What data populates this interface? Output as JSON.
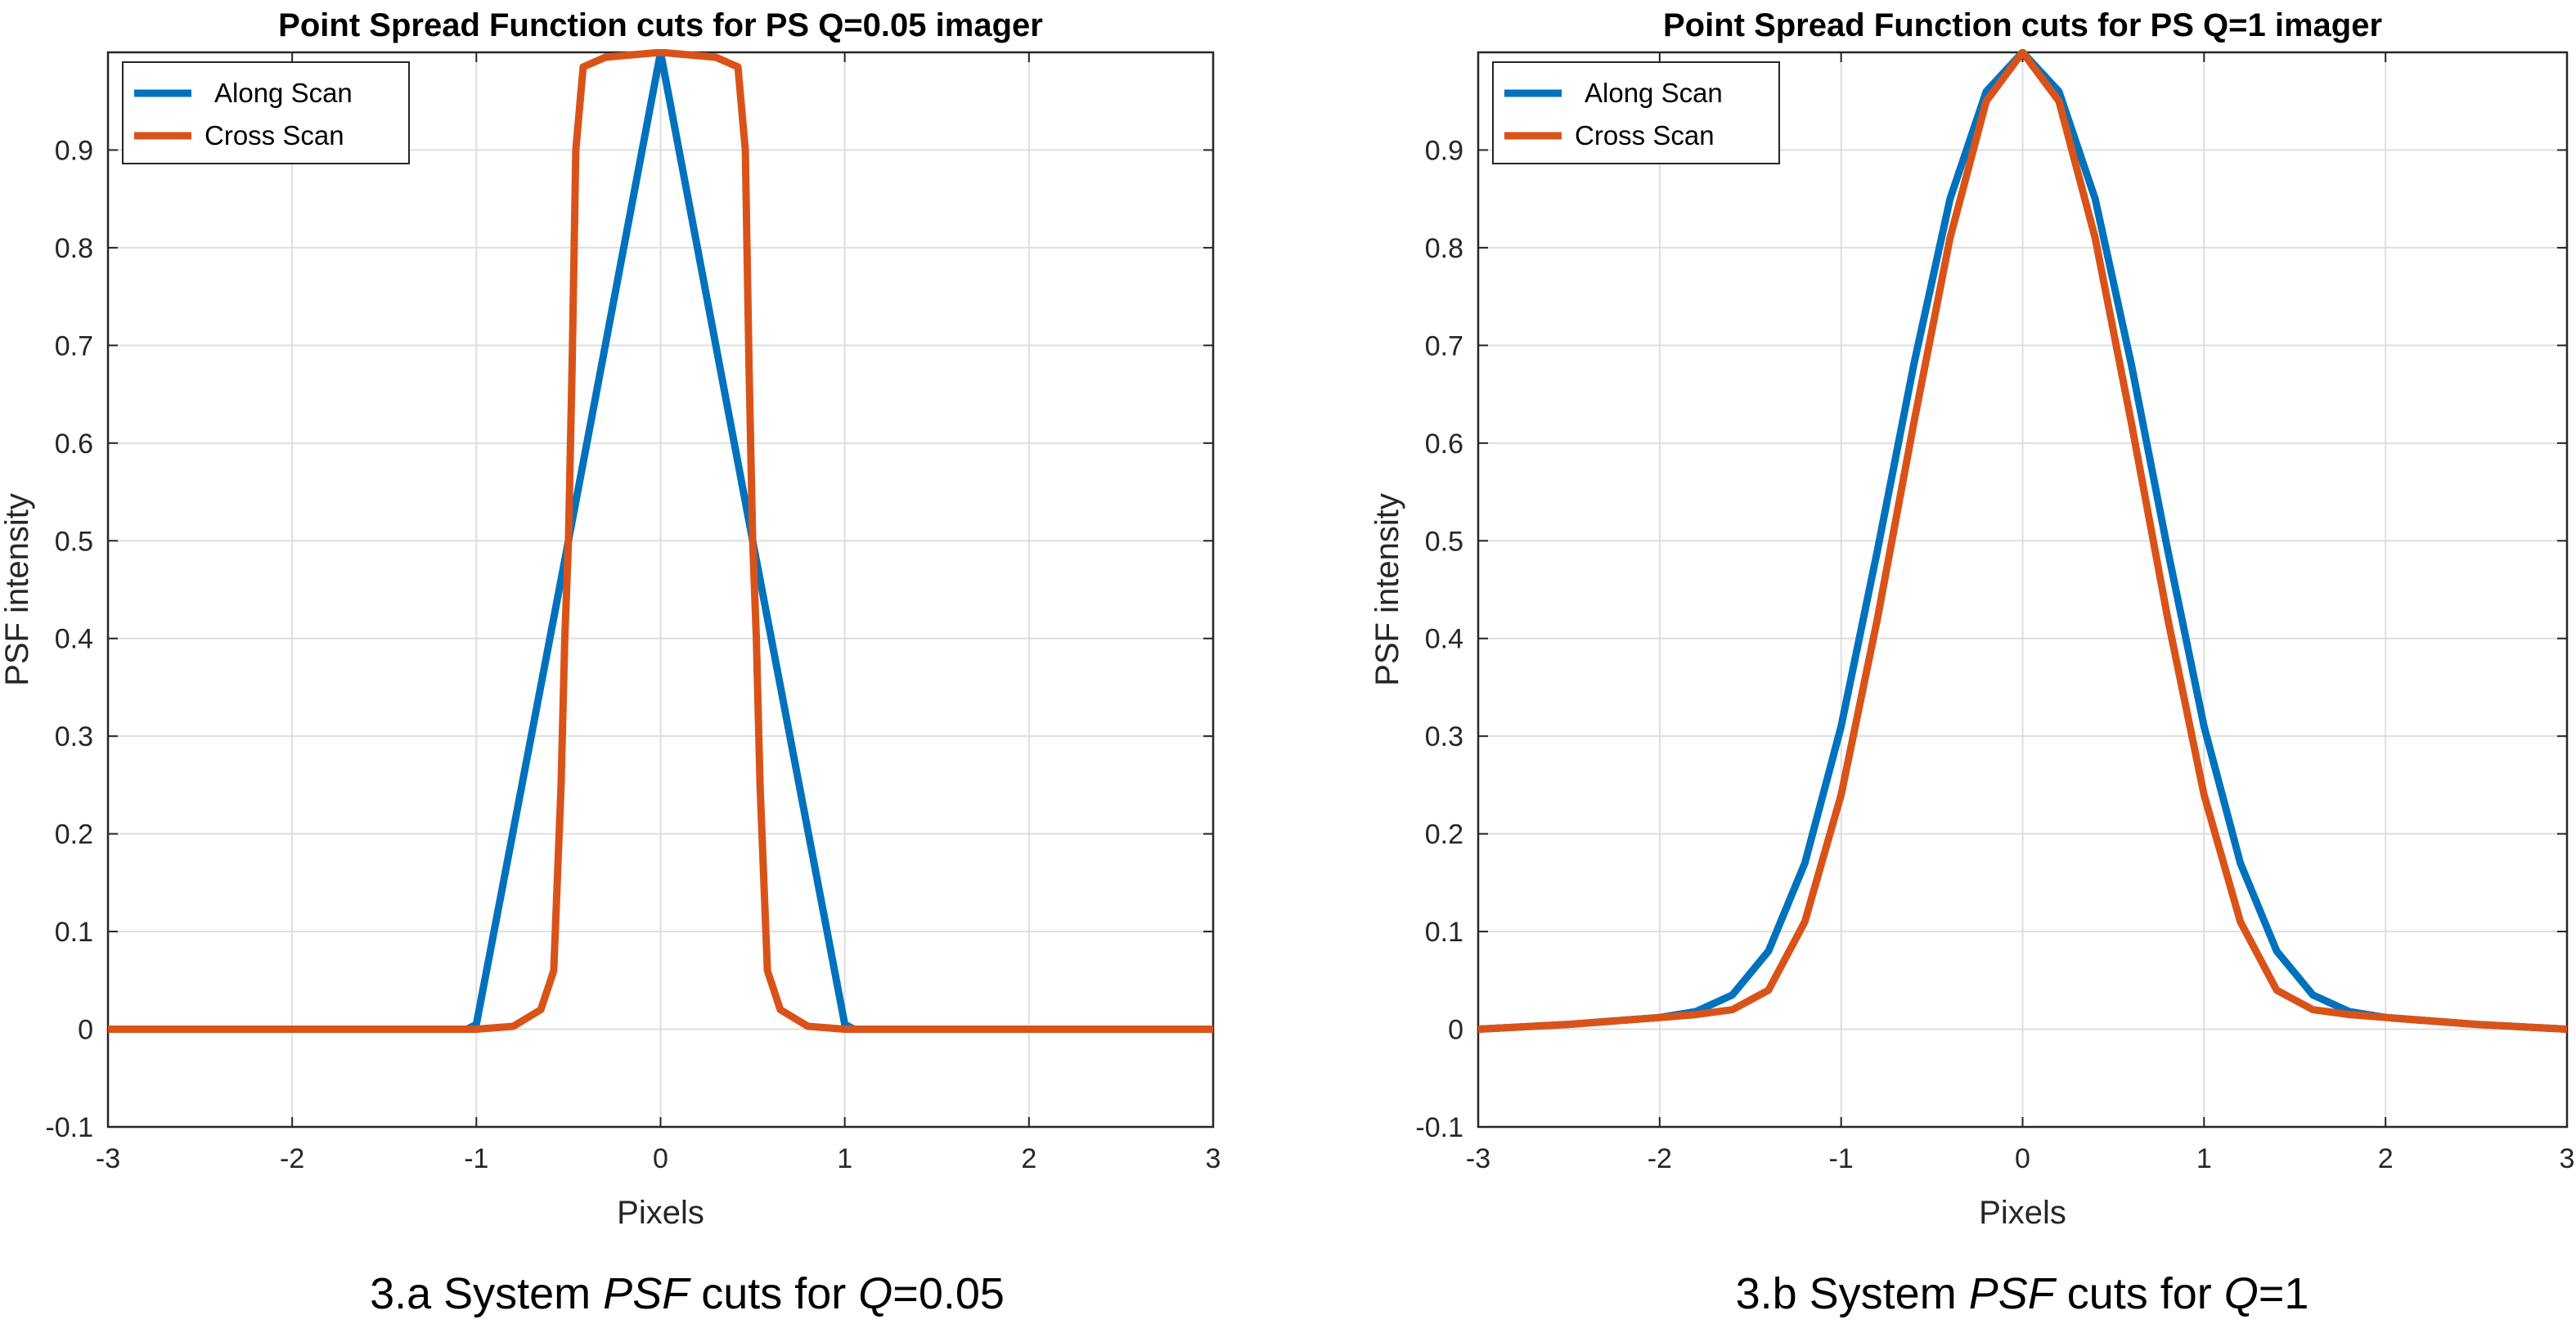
{
  "chart_data": [
    {
      "type": "line",
      "title": "Point Spread Function cuts for PS Q=0.05 imager",
      "xlabel": "Pixels",
      "ylabel": "PSF intensity",
      "xlim": [
        -3,
        3
      ],
      "ylim": [
        -0.1,
        1
      ],
      "xticks": [
        "-3",
        "-2",
        "-1",
        "0",
        "1",
        "2",
        "3"
      ],
      "yticks": [
        "-0.1",
        "0",
        "0.1",
        "0.2",
        "0.3",
        "0.4",
        "0.5",
        "0.6",
        "0.7",
        "0.8",
        "0.9"
      ],
      "grid": true,
      "legend": "top-left",
      "caption": {
        "pre": "3.a System ",
        "psf": "PSF",
        "mid": " cuts for ",
        "q": "Q",
        "post": "=0.05"
      },
      "series": [
        {
          "name": "Along Scan",
          "color": "#0072BD",
          "x": [
            -3,
            -1.05,
            -1.0,
            -0.5,
            0,
            0.5,
            1.0,
            1.05,
            3
          ],
          "y": [
            0,
            0,
            0.005,
            0.5,
            1.0,
            0.5,
            0.005,
            0,
            0
          ]
        },
        {
          "name": "Cross Scan",
          "color": "#D95319",
          "x": [
            -3,
            -1.0,
            -0.8,
            -0.65,
            -0.58,
            -0.54,
            -0.52,
            -0.5,
            -0.48,
            -0.46,
            -0.42,
            -0.3,
            0,
            0.3,
            0.42,
            0.46,
            0.48,
            0.5,
            0.52,
            0.54,
            0.58,
            0.65,
            0.8,
            1.0,
            3
          ],
          "y": [
            0,
            0,
            0.003,
            0.02,
            0.06,
            0.25,
            0.4,
            0.5,
            0.68,
            0.9,
            0.985,
            0.995,
            1.0,
            0.995,
            0.985,
            0.9,
            0.68,
            0.5,
            0.4,
            0.25,
            0.06,
            0.02,
            0.003,
            0,
            0
          ]
        }
      ]
    },
    {
      "type": "line",
      "title": "Point Spread Function cuts for PS Q=1 imager",
      "xlabel": "Pixels",
      "ylabel": "PSF intensity",
      "xlim": [
        -3,
        3
      ],
      "ylim": [
        -0.1,
        1
      ],
      "xticks": [
        "-3",
        "-2",
        "-1",
        "0",
        "1",
        "2",
        "3"
      ],
      "yticks": [
        "-0.1",
        "0",
        "0.1",
        "0.2",
        "0.3",
        "0.4",
        "0.5",
        "0.6",
        "0.7",
        "0.8",
        "0.9"
      ],
      "grid": true,
      "legend": "top-left",
      "caption": {
        "pre": "3.b System ",
        "psf": "PSF",
        "mid": " cuts for ",
        "q": "Q",
        "post": "=1"
      },
      "series": [
        {
          "name": "Along Scan",
          "color": "#0072BD",
          "x": [
            -3,
            -2.5,
            -2.0,
            -1.8,
            -1.6,
            -1.4,
            -1.2,
            -1.0,
            -0.8,
            -0.6,
            -0.4,
            -0.2,
            0,
            0.2,
            0.4,
            0.6,
            0.8,
            1.0,
            1.2,
            1.4,
            1.6,
            1.8,
            2.0,
            2.5,
            3
          ],
          "y": [
            0,
            0.005,
            0.012,
            0.018,
            0.035,
            0.08,
            0.17,
            0.31,
            0.49,
            0.68,
            0.85,
            0.96,
            1.0,
            0.96,
            0.85,
            0.68,
            0.49,
            0.31,
            0.17,
            0.08,
            0.035,
            0.018,
            0.012,
            0.005,
            0
          ]
        },
        {
          "name": "Cross Scan",
          "color": "#D95319",
          "x": [
            -3,
            -2.5,
            -2.0,
            -1.8,
            -1.6,
            -1.4,
            -1.2,
            -1.0,
            -0.8,
            -0.6,
            -0.4,
            -0.2,
            0,
            0.2,
            0.4,
            0.6,
            0.8,
            1.0,
            1.2,
            1.4,
            1.6,
            1.8,
            2.0,
            2.5,
            3
          ],
          "y": [
            0,
            0.005,
            0.012,
            0.015,
            0.02,
            0.04,
            0.11,
            0.24,
            0.42,
            0.62,
            0.81,
            0.95,
            1.0,
            0.95,
            0.81,
            0.62,
            0.42,
            0.24,
            0.11,
            0.04,
            0.02,
            0.015,
            0.012,
            0.005,
            0
          ]
        }
      ]
    }
  ]
}
